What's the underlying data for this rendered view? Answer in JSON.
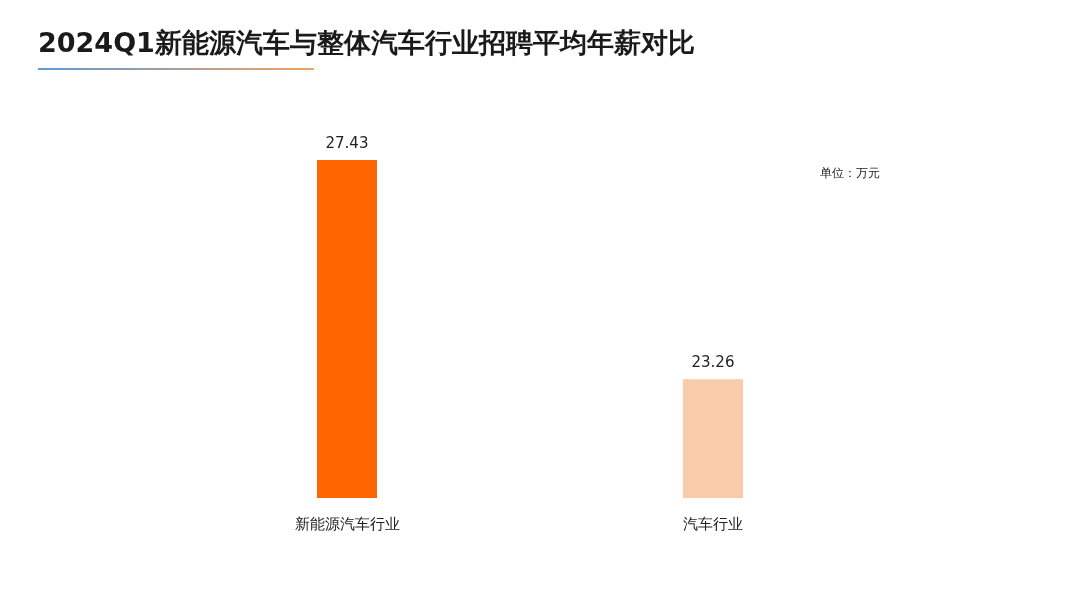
{
  "chart_data": {
    "type": "bar",
    "title": "2024Q1新能源汽车与整体汽车行业招聘平均年薪对比",
    "annotations": [
      "单位：万元"
    ],
    "categories": [
      "新能源汽车行业",
      "汽车行业"
    ],
    "values": [
      27.43,
      23.26
    ],
    "colors": [
      "#ff6600",
      "#f8cbab"
    ],
    "ylim": [
      21,
      27.43
    ],
    "data_labels": true
  }
}
